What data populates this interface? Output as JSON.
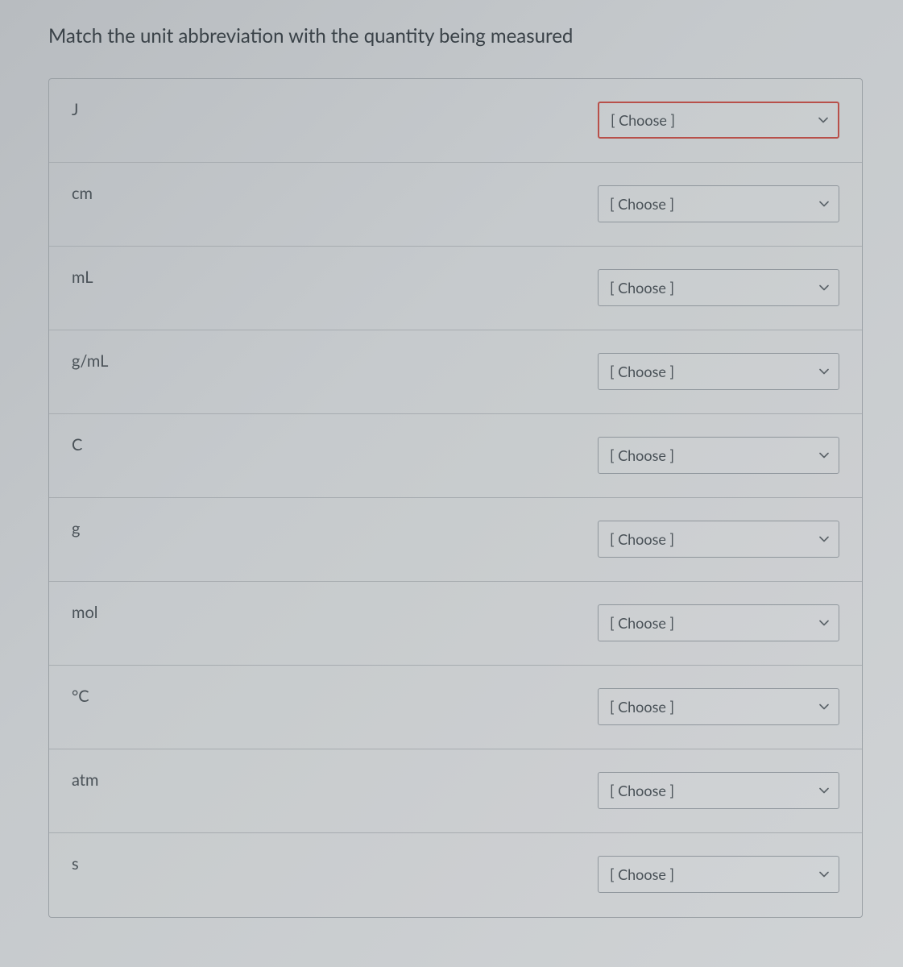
{
  "prompt": "Match the unit abbreviation with the quantity being measured",
  "choose_placeholder": "[ Choose ]",
  "rows": [
    {
      "label": "J",
      "highlight": true
    },
    {
      "label": "cm",
      "highlight": false
    },
    {
      "label": "mL",
      "highlight": false
    },
    {
      "label": "g/mL",
      "highlight": false
    },
    {
      "label": "C",
      "highlight": false
    },
    {
      "label": "g",
      "highlight": false
    },
    {
      "label": "mol",
      "highlight": false
    },
    {
      "label": "°C",
      "highlight": false
    },
    {
      "label": "atm",
      "highlight": false
    },
    {
      "label": "s",
      "highlight": false
    }
  ],
  "colors": {
    "text": "#4a5258",
    "border": "#8f969c",
    "divider": "#a7acb0",
    "highlight_border": "#b8504a"
  }
}
